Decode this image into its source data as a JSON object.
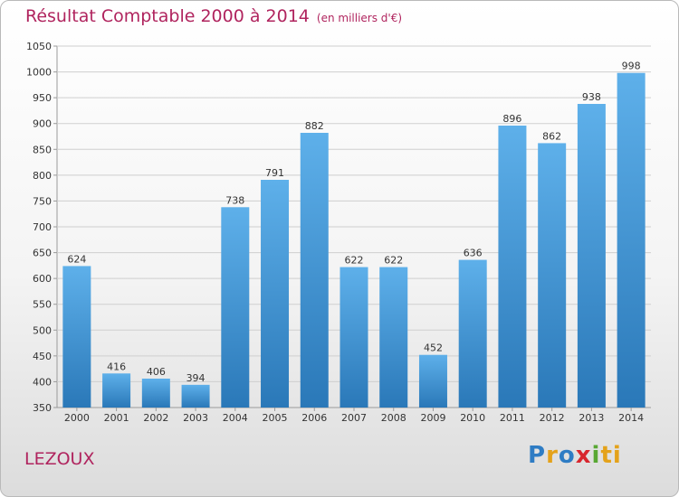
{
  "title": "Résultat Comptable 2000 à 2014",
  "subtitle": "(en milliers d'€)",
  "city": "LEZOUX",
  "logo_letters": [
    "P",
    "r",
    "o",
    "x",
    "i",
    "ti"
  ],
  "colors": {
    "bar_top": "#5eb0ea",
    "bar_bottom": "#2a78b8",
    "title": "#b0245e",
    "grid": "#cfcfcf"
  },
  "chart_data": {
    "type": "bar",
    "title": "Résultat Comptable 2000 à 2014",
    "subtitle": "(en milliers d'€)",
    "categories": [
      "2000",
      "2001",
      "2002",
      "2003",
      "2004",
      "2005",
      "2006",
      "2007",
      "2008",
      "2009",
      "2010",
      "2011",
      "2012",
      "2013",
      "2014"
    ],
    "values": [
      624,
      416,
      406,
      394,
      738,
      791,
      882,
      622,
      622,
      452,
      636,
      896,
      862,
      938,
      998
    ],
    "ylim": [
      350,
      1050
    ],
    "yticks": [
      350,
      400,
      450,
      500,
      550,
      600,
      650,
      700,
      750,
      800,
      850,
      900,
      950,
      1000,
      1050
    ],
    "grid": true,
    "xlabel": "",
    "ylabel": ""
  }
}
